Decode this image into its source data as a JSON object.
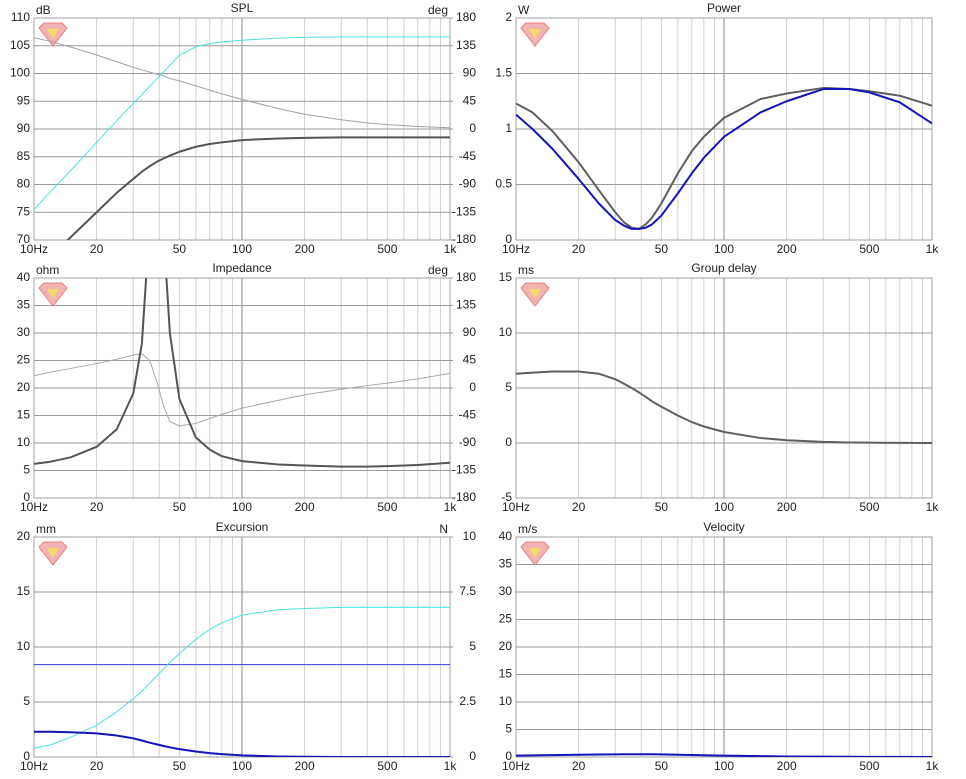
{
  "chart_data": [
    {
      "type": "line",
      "title": "SPL",
      "y_unit": "dB",
      "y2_unit": "deg",
      "xscale": "log",
      "xlim": [
        10,
        1000
      ],
      "xticks": [
        {
          "value": 10,
          "label": "10Hz"
        },
        20,
        50,
        100,
        200,
        500,
        {
          "value": 1000,
          "label": "1k"
        }
      ],
      "xgrid_minor": [
        30,
        40,
        60,
        70,
        80,
        90,
        300,
        400,
        600,
        700,
        800,
        900
      ],
      "ylim": [
        70,
        110
      ],
      "yticks": [
        70,
        75,
        80,
        85,
        90,
        95,
        100,
        105,
        110
      ],
      "y2lim": [
        -180,
        180
      ],
      "y2ticks": [
        -180,
        -135,
        -90,
        -45,
        0,
        45,
        90,
        135,
        180
      ],
      "x": [
        10,
        12,
        15,
        20,
        25,
        30,
        33,
        36,
        39,
        42,
        45,
        50,
        60,
        70,
        80,
        100,
        150,
        200,
        300,
        400,
        500,
        700,
        1000
      ],
      "series": [
        {
          "color": "#9ea3a3",
          "width": 1,
          "axis": "y2",
          "values": [
            148,
            142,
            133,
            120,
            109,
            100,
            96,
            92,
            89,
            86,
            82,
            78,
            70,
            63,
            57,
            48,
            33,
            24,
            15,
            10,
            7,
            4,
            2
          ]
        },
        {
          "color": "#4fe0e0",
          "width": 1,
          "values": [
            75.5,
            78.7,
            82.5,
            87.6,
            91.5,
            94.6,
            96.2,
            97.7,
            99,
            100.3,
            101.5,
            103.3,
            104.8,
            105.4,
            105.7,
            106,
            106.4,
            106.5,
            106.6,
            106.6,
            106.6,
            106.6,
            106.6
          ]
        },
        {
          "color": "#555555",
          "width": 2,
          "values": [
            64,
            67,
            70.5,
            75,
            78.5,
            81,
            82.3,
            83.3,
            84.1,
            84.7,
            85.2,
            85.9,
            86.8,
            87.3,
            87.6,
            88,
            88.3,
            88.4,
            88.5,
            88.5,
            88.5,
            88.5,
            88.5
          ]
        }
      ]
    },
    {
      "type": "line",
      "title": "Power",
      "y_unit": "W",
      "xscale": "log",
      "xlim": [
        10,
        1000
      ],
      "xticks": [
        {
          "value": 10,
          "label": "10Hz"
        },
        20,
        50,
        100,
        200,
        500,
        {
          "value": 1000,
          "label": "1k"
        }
      ],
      "xgrid_minor": [
        30,
        40,
        60,
        70,
        80,
        90,
        300,
        400,
        600,
        700,
        800,
        900
      ],
      "ylim": [
        0,
        2
      ],
      "yticks": [
        0,
        0.5,
        1,
        1.5,
        2
      ],
      "x": [
        10,
        12,
        15,
        20,
        25,
        30,
        33,
        36,
        39,
        42,
        45,
        50,
        60,
        70,
        80,
        100,
        150,
        200,
        300,
        400,
        500,
        700,
        1000
      ],
      "series": [
        {
          "color": "#5f5f5f",
          "width": 2,
          "values": [
            1.23,
            1.15,
            0.98,
            0.7,
            0.45,
            0.25,
            0.16,
            0.11,
            0.1,
            0.14,
            0.2,
            0.33,
            0.6,
            0.8,
            0.93,
            1.1,
            1.27,
            1.32,
            1.37,
            1.36,
            1.34,
            1.3,
            1.21
          ]
        },
        {
          "color": "#1414b8",
          "width": 2,
          "values": [
            1.13,
            1.0,
            0.82,
            0.55,
            0.33,
            0.18,
            0.13,
            0.1,
            0.1,
            0.11,
            0.14,
            0.22,
            0.42,
            0.6,
            0.74,
            0.93,
            1.15,
            1.25,
            1.36,
            1.36,
            1.33,
            1.24,
            1.05
          ]
        }
      ]
    },
    {
      "type": "line",
      "title": "Impedance",
      "y_unit": "ohm",
      "y2_unit": "deg",
      "xscale": "log",
      "xlim": [
        10,
        1000
      ],
      "xticks": [
        {
          "value": 10,
          "label": "10Hz"
        },
        20,
        50,
        100,
        200,
        500,
        {
          "value": 1000,
          "label": "1k"
        }
      ],
      "xgrid_minor": [
        30,
        40,
        60,
        70,
        80,
        90,
        300,
        400,
        600,
        700,
        800,
        900
      ],
      "ylim": [
        0,
        40
      ],
      "yticks": [
        0,
        5,
        10,
        15,
        20,
        25,
        30,
        35,
        40
      ],
      "y2lim": [
        -180,
        180
      ],
      "y2ticks": [
        -180,
        -135,
        -90,
        -45,
        0,
        45,
        90,
        135,
        180
      ],
      "x": [
        10,
        12,
        15,
        20,
        25,
        30,
        33,
        36,
        39,
        42,
        45,
        50,
        60,
        70,
        80,
        100,
        150,
        200,
        300,
        400,
        500,
        700,
        1000
      ],
      "series": [
        {
          "color": "#a8a8a8",
          "width": 1,
          "axis": "y2",
          "values": [
            20,
            26,
            32,
            40,
            47,
            54,
            56,
            45,
            10,
            -30,
            -55,
            -62,
            -58,
            -50,
            -43,
            -33,
            -20,
            -11,
            -2,
            4,
            8,
            15,
            24
          ]
        },
        {
          "color": "#555555",
          "width": 2,
          "values": [
            6.2,
            6.6,
            7.4,
            9.3,
            12.5,
            19,
            28,
            50,
            75,
            48,
            30,
            18,
            11,
            8.8,
            7.6,
            6.7,
            6.1,
            5.9,
            5.7,
            5.7,
            5.8,
            6.0,
            6.4
          ]
        }
      ]
    },
    {
      "type": "line",
      "title": "Group delay",
      "y_unit": "ms",
      "xscale": "log",
      "xlim": [
        10,
        1000
      ],
      "xticks": [
        {
          "value": 10,
          "label": "10Hz"
        },
        20,
        50,
        100,
        200,
        500,
        {
          "value": 1000,
          "label": "1k"
        }
      ],
      "xgrid_minor": [
        30,
        40,
        60,
        70,
        80,
        90,
        300,
        400,
        600,
        700,
        800,
        900
      ],
      "ylim": [
        -5,
        15
      ],
      "yticks": [
        -5,
        0,
        5,
        10,
        15
      ],
      "x": [
        10,
        12,
        15,
        20,
        25,
        30,
        33,
        36,
        39,
        42,
        45,
        50,
        60,
        70,
        80,
        100,
        150,
        200,
        300,
        400,
        500,
        700,
        1000
      ],
      "series": [
        {
          "color": "#5f5f5f",
          "width": 2,
          "values": [
            6.3,
            6.4,
            6.5,
            6.5,
            6.3,
            5.8,
            5.4,
            5.0,
            4.6,
            4.2,
            3.8,
            3.3,
            2.5,
            1.9,
            1.5,
            1.0,
            0.45,
            0.25,
            0.1,
            0.05,
            0.03,
            0.01,
            0
          ]
        }
      ]
    },
    {
      "type": "line",
      "title": "Excursion",
      "y_unit": "mm",
      "y2_unit": "N",
      "xscale": "log",
      "xlim": [
        10,
        1000
      ],
      "xticks": [
        {
          "value": 10,
          "label": "10Hz"
        },
        20,
        50,
        100,
        200,
        500,
        {
          "value": 1000,
          "label": "1k"
        }
      ],
      "xgrid_minor": [
        30,
        40,
        60,
        70,
        80,
        90,
        300,
        400,
        600,
        700,
        800,
        900
      ],
      "ylim": [
        0,
        20
      ],
      "yticks": [
        0,
        5,
        10,
        15,
        20
      ],
      "y2lim": [
        0,
        10
      ],
      "y2ticks": [
        0,
        2.5,
        5,
        7.5,
        10
      ],
      "x": [
        10,
        12,
        15,
        20,
        25,
        30,
        33,
        36,
        39,
        42,
        45,
        50,
        60,
        70,
        80,
        100,
        150,
        200,
        300,
        400,
        500,
        700,
        1000
      ],
      "series": [
        {
          "color": "#3a3ad0",
          "width": 1,
          "values": [
            8.4,
            8.4,
            8.4,
            8.4,
            8.4,
            8.4,
            8.4,
            8.4,
            8.4,
            8.4,
            8.4,
            8.4,
            8.4,
            8.4,
            8.4,
            8.4,
            8.4,
            8.4,
            8.4,
            8.4,
            8.4,
            8.4,
            8.4
          ]
        },
        {
          "color": "#4fe0e0",
          "width": 1,
          "values": [
            0.8,
            1.1,
            1.8,
            2.9,
            4.1,
            5.3,
            6.0,
            6.7,
            7.4,
            8.0,
            8.6,
            9.4,
            10.7,
            11.6,
            12.2,
            12.9,
            13.4,
            13.5,
            13.6,
            13.6,
            13.6,
            13.6,
            13.6
          ]
        },
        {
          "color": "#1414b8",
          "width": 2,
          "values": [
            2.3,
            2.3,
            2.25,
            2.15,
            1.95,
            1.7,
            1.5,
            1.3,
            1.15,
            1.0,
            0.88,
            0.72,
            0.5,
            0.35,
            0.26,
            0.15,
            0.05,
            0.02,
            0,
            0,
            0,
            0,
            0
          ]
        }
      ]
    },
    {
      "type": "line",
      "title": "Velocity",
      "y_unit": "m/s",
      "xscale": "log",
      "xlim": [
        10,
        1000
      ],
      "xticks": [
        {
          "value": 10,
          "label": "10Hz"
        },
        20,
        50,
        100,
        200,
        500,
        {
          "value": 1000,
          "label": "1k"
        }
      ],
      "xgrid_minor": [
        30,
        40,
        60,
        70,
        80,
        90,
        300,
        400,
        600,
        700,
        800,
        900
      ],
      "ylim": [
        0,
        40
      ],
      "yticks": [
        0,
        5,
        10,
        15,
        20,
        25,
        30,
        35,
        40
      ],
      "x": [
        10,
        12,
        15,
        20,
        25,
        30,
        33,
        36,
        39,
        42,
        45,
        50,
        60,
        70,
        80,
        100,
        150,
        200,
        300,
        400,
        500,
        700,
        1000
      ],
      "series": [
        {
          "color": "#1414b8",
          "width": 2,
          "values": [
            0.25,
            0.3,
            0.35,
            0.4,
            0.45,
            0.48,
            0.5,
            0.5,
            0.5,
            0.5,
            0.49,
            0.47,
            0.42,
            0.37,
            0.32,
            0.25,
            0.15,
            0.1,
            0.06,
            0.04,
            0.03,
            0.02,
            0.01
          ]
        }
      ]
    }
  ]
}
